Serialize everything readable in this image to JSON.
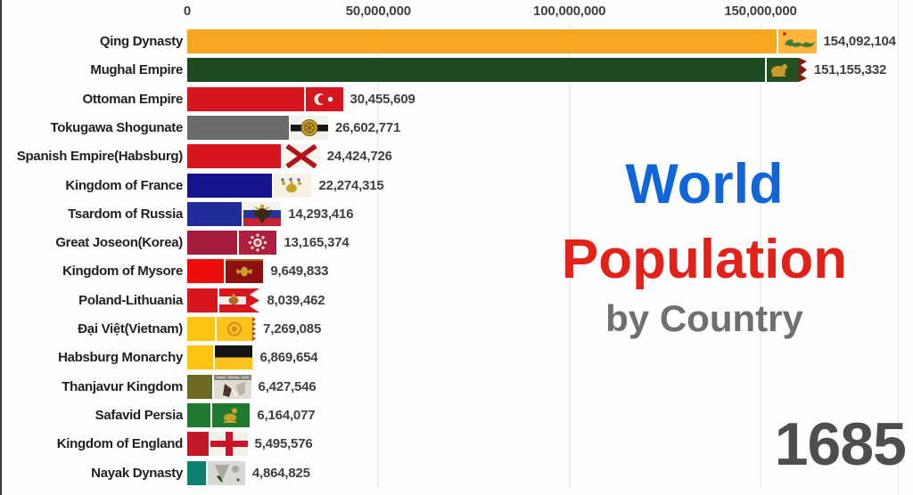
{
  "title": {
    "line1": "World",
    "line2": "Population",
    "line3": "by Country",
    "line1_color": "#1065d8",
    "line2_color": "#e32119",
    "line3_color": "#6f6f6f"
  },
  "year": "1685",
  "year_color": "#4e4e4e",
  "chart_data": {
    "type": "bar",
    "orientation": "horizontal",
    "title": "World Population by Country",
    "year": "1685",
    "grid": true,
    "axis": {
      "position": "top",
      "max_value": 150000000,
      "ticks": [
        {
          "value": 0,
          "label": "0"
        },
        {
          "value": 50000000,
          "label": "50,000,000"
        },
        {
          "value": 100000000,
          "label": "100,000,000"
        },
        {
          "value": 150000000,
          "label": "150,000,000"
        }
      ]
    },
    "bars": [
      {
        "label": "Qing Dynasty",
        "value": 154092104,
        "value_label": "154,092,104",
        "color": "#F7A623",
        "flag": "qing"
      },
      {
        "label": "Mughal Empire",
        "value": 151155332,
        "value_label": "151,155,332",
        "color": "#1D4A21",
        "flag": "mughal"
      },
      {
        "label": "Ottoman Empire",
        "value": 30455609,
        "value_label": "30,455,609",
        "color": "#D6161E",
        "flag": "ottoman"
      },
      {
        "label": "Tokugawa Shogunate",
        "value": 26602771,
        "value_label": "26,602,771",
        "color": "#6B6B6B",
        "flag": "tokugawa"
      },
      {
        "label": "Spanish Empire(Habsburg)",
        "value": 24424726,
        "value_label": "24,424,726",
        "color": "#D6161E",
        "flag": "burgundy-cross"
      },
      {
        "label": "Kingdom of France",
        "value": 22274315,
        "value_label": "22,274,315",
        "color": "#15148C",
        "flag": "france-royal"
      },
      {
        "label": "Tsardom of Russia",
        "value": 14293416,
        "value_label": "14,293,416",
        "color": "#202C9C",
        "flag": "russia-tsar"
      },
      {
        "label": "Great Joseon(Korea)",
        "value": 13165374,
        "value_label": "13,165,374",
        "color": "#A61C3C",
        "flag": "joseon"
      },
      {
        "label": "Kingdom of Mysore",
        "value": 9649833,
        "value_label": "9,649,833",
        "color": "#EE0D0D",
        "flag": "mysore"
      },
      {
        "label": "Poland-Lithuania",
        "value": 8039462,
        "value_label": "8,039,462",
        "color": "#D6161E",
        "flag": "poland"
      },
      {
        "label": "Đại Việt(Vietnam)",
        "value": 7269085,
        "value_label": "7,269,085",
        "color": "#FFC312",
        "flag": "dai-viet"
      },
      {
        "label": "Habsburg Monarchy",
        "value": 6869654,
        "value_label": "6,869,654",
        "color": "#FFC312",
        "flag": "habsburg"
      },
      {
        "label": "Thanjavur Kingdom",
        "value": 6427546,
        "value_label": "6,427,546",
        "color": "#6E6920",
        "flag": "thanjavur"
      },
      {
        "label": "Safavid Persia",
        "value": 6164077,
        "value_label": "6,164,077",
        "color": "#1E7A2E",
        "flag": "safavid"
      },
      {
        "label": "Kingdom of England",
        "value": 5495576,
        "value_label": "5,495,576",
        "color": "#C21828",
        "flag": "england"
      },
      {
        "label": "Nayak Dynasty",
        "value": 4864825,
        "value_label": "4,864,825",
        "color": "#0E8070",
        "flag": "nayak"
      }
    ]
  }
}
